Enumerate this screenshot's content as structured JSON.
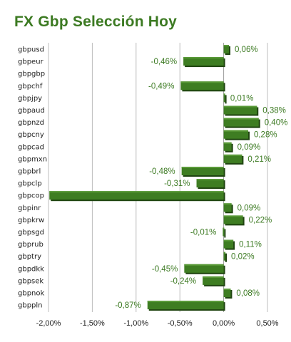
{
  "chart_data": {
    "type": "bar",
    "orientation": "horizontal",
    "title": "FX Gbp Selección Hoy",
    "xlabel": "",
    "ylabel": "",
    "xlim": [
      -2.0,
      0.5
    ],
    "x_ticks": [
      "-2,00%",
      "-1,50%",
      "-1,00%",
      "-0,50%",
      "0,00%",
      "0,50%"
    ],
    "x_tick_values": [
      -2.0,
      -1.5,
      -1.0,
      -0.5,
      0.0,
      0.5
    ],
    "grid": "vertical",
    "legend": "none",
    "categories": [
      "gbpusd",
      "gbpeur",
      "gbpgbp",
      "gbpchf",
      "gbpjpy",
      "gbpaud",
      "gbpnzd",
      "gbpcny",
      "gbpcad",
      "gbpmxn",
      "gbpbrl",
      "gbpclp",
      "gbpcop",
      "gbpinr",
      "gbpkrw",
      "gbpsgd",
      "gbprub",
      "gbptry",
      "gbpdkk",
      "gbpsek",
      "gbpnok",
      "gbppln"
    ],
    "values": [
      0.06,
      -0.46,
      null,
      -0.49,
      0.01,
      0.38,
      0.4,
      0.28,
      0.09,
      0.21,
      -0.48,
      -0.31,
      -1.99,
      0.09,
      0.22,
      -0.01,
      0.11,
      0.02,
      -0.45,
      -0.24,
      0.08,
      -0.87
    ],
    "data_labels": [
      "0,06%",
      "-0,46%",
      "",
      "-0,49%",
      "0,01%",
      "0,38%",
      "0,40%",
      "0,28%",
      "0,09%",
      "0,21%",
      "-0,48%",
      "-0,31%",
      "",
      "0,09%",
      "0,22%",
      "-0,01%",
      "0,11%",
      "0,02%",
      "-0,45%",
      "-0,24%",
      "0,08%",
      "-0,87%"
    ],
    "colors": {
      "bar_face": "#3e7d22",
      "bar_highlight": "#5a9a38",
      "bar_shadow": "#1f4410",
      "label_text": "#3c7a22",
      "grid": "#bcbcbc",
      "axis": "#9a9a9a",
      "title": "#3c7a22"
    }
  }
}
